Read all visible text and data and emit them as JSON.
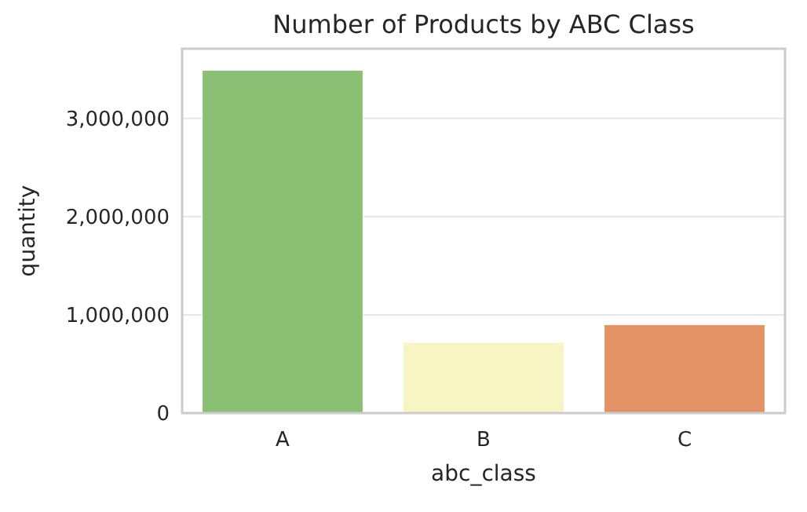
{
  "chart_data": {
    "type": "bar",
    "title": "Number of Products by ABC Class",
    "xlabel": "abc_class",
    "ylabel": "quantity",
    "categories": [
      "A",
      "B",
      "C"
    ],
    "values": [
      3490000,
      720000,
      900000
    ],
    "colors": [
      "#8bbf74",
      "#f7f5c4",
      "#e39266"
    ],
    "ylim": [
      0,
      3710000
    ],
    "yticks": [
      {
        "value": 0,
        "label": "0"
      },
      {
        "value": 1000000,
        "label": "1,000,000"
      },
      {
        "value": 2000000,
        "label": "2,000,000"
      },
      {
        "value": 3000000,
        "label": "3,000,000"
      }
    ],
    "grid": "y"
  }
}
